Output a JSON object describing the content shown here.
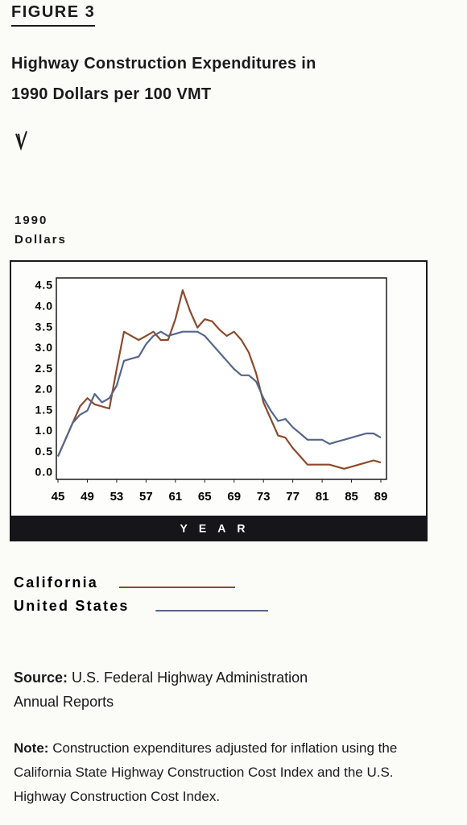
{
  "figure_label": "FIGURE 3",
  "source": {
    "label": "Source:",
    "text": "U.S. Federal Highway Administration Annual Reports"
  },
  "note": {
    "label": "Note:",
    "text": "Construction expenditures adjusted for inflation using the California State Highway Construction Cost Index and the U.S. Highway Construction Cost Index."
  },
  "chart_data": {
    "type": "line",
    "title": "Highway Construction Expenditures in 1990 Dollars per 100 VMT",
    "y_label": "1990 Dollars",
    "x_label": "YEAR",
    "x": [
      45,
      46,
      47,
      48,
      49,
      50,
      51,
      52,
      53,
      54,
      55,
      56,
      57,
      58,
      59,
      60,
      61,
      62,
      63,
      64,
      65,
      66,
      67,
      68,
      69,
      70,
      71,
      72,
      73,
      74,
      75,
      76,
      77,
      78,
      79,
      80,
      81,
      82,
      83,
      84,
      85,
      86,
      87,
      88,
      89
    ],
    "series": [
      {
        "name": "California",
        "color": "#8b4a2b",
        "values": [
          0.4,
          0.8,
          1.2,
          1.6,
          1.8,
          1.65,
          1.6,
          1.55,
          2.5,
          3.4,
          3.3,
          3.2,
          3.3,
          3.4,
          3.2,
          3.2,
          3.7,
          4.4,
          3.9,
          3.5,
          3.7,
          3.65,
          3.45,
          3.3,
          3.4,
          3.2,
          2.9,
          2.4,
          1.7,
          1.3,
          0.9,
          0.85,
          0.6,
          0.4,
          0.2,
          0.2,
          0.2,
          0.2,
          0.15,
          0.1,
          0.15,
          0.2,
          0.25,
          0.3,
          0.25
        ]
      },
      {
        "name": "United States",
        "color": "#56668a",
        "values": [
          0.4,
          0.8,
          1.2,
          1.4,
          1.5,
          1.9,
          1.7,
          1.8,
          2.1,
          2.7,
          2.75,
          2.8,
          3.1,
          3.3,
          3.4,
          3.3,
          3.35,
          3.4,
          3.4,
          3.4,
          3.3,
          3.1,
          2.9,
          2.7,
          2.5,
          2.35,
          2.35,
          2.2,
          1.8,
          1.5,
          1.25,
          1.3,
          1.1,
          0.95,
          0.8,
          0.8,
          0.8,
          0.7,
          0.75,
          0.8,
          0.85,
          0.9,
          0.95,
          0.95,
          0.85
        ]
      }
    ],
    "xlim": [
      45,
      89
    ],
    "xticks": [
      45,
      49,
      53,
      57,
      61,
      65,
      69,
      73,
      77,
      81,
      85,
      89
    ],
    "ylim": [
      0,
      4.5
    ],
    "yticks": [
      {
        "value": 0,
        "label": "0.0"
      },
      0.5,
      {
        "value": 1,
        "label": "1.0"
      },
      1.5,
      {
        "value": 2,
        "label": "2.0"
      },
      2.5,
      {
        "value": 3,
        "label": "3.0"
      },
      3.5,
      {
        "value": 4,
        "label": "4.0"
      },
      4.5
    ]
  }
}
